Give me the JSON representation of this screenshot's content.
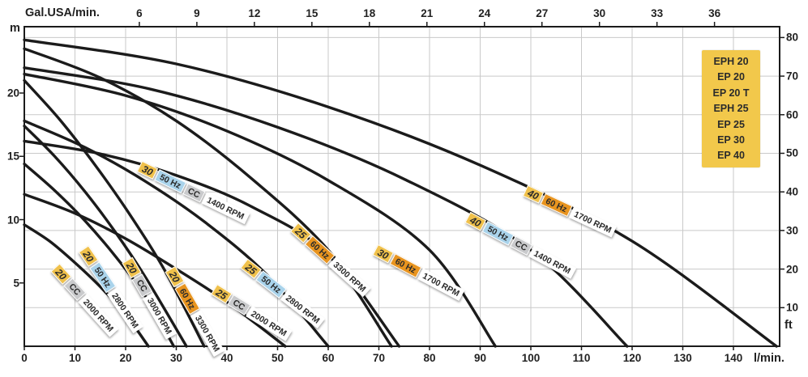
{
  "chart_data": {
    "type": "line",
    "title": "",
    "axes": {
      "top": {
        "label": "Gal.USA/min.",
        "ticks": [
          6,
          9,
          12,
          15,
          18,
          21,
          24,
          27,
          30,
          33,
          36
        ]
      },
      "bottom": {
        "label": "l/min.",
        "ticks": [
          0,
          10,
          20,
          30,
          40,
          50,
          60,
          70,
          80,
          90,
          100,
          110,
          120,
          130,
          140
        ]
      },
      "left": {
        "label": "m",
        "ticks": [
          5,
          10,
          15,
          20
        ]
      },
      "right": {
        "label": "ft",
        "ticks": [
          10,
          20,
          30,
          40,
          50,
          60,
          70,
          80
        ]
      }
    },
    "x_range_lmin": [
      0,
      149
    ],
    "y_range_m": [
      0,
      25.2
    ],
    "grid": {
      "vertical_every_lmin": 10,
      "horizontal_every_ft": 10,
      "gal_per_lmin": 0.2642,
      "ft_per_m": 3.2808
    },
    "series": [
      {
        "model": "40",
        "freq": "60 Hz",
        "cc": false,
        "rpm": "1700 RPM",
        "label": {
          "q": 98.9,
          "h": 12.8,
          "angle": 25
        },
        "points": [
          [
            0,
            24.2
          ],
          [
            30,
            22.3
          ],
          [
            60,
            18.9
          ],
          [
            90,
            14.3
          ],
          [
            120,
            8.3
          ],
          [
            148.5,
            0
          ]
        ]
      },
      {
        "model": "40",
        "freq": "50 Hz",
        "cc": true,
        "rpm": "1400 RPM",
        "label": {
          "q": 87.5,
          "h": 10.7,
          "angle": 28
        },
        "points": [
          [
            0,
            22.0
          ],
          [
            25,
            20.3
          ],
          [
            50,
            17.3
          ],
          [
            75,
            13.2
          ],
          [
            100,
            7.6
          ],
          [
            119,
            0
          ]
        ]
      },
      {
        "model": "30",
        "freq": "60 Hz",
        "cc": false,
        "rpm": "1700 RPM",
        "label": {
          "q": 69.3,
          "h": 8.1,
          "angle": 28
        },
        "points": [
          [
            0,
            21.5
          ],
          [
            20,
            19.8
          ],
          [
            40,
            17.0
          ],
          [
            60,
            13.1
          ],
          [
            80,
            7.6
          ],
          [
            93,
            0
          ]
        ]
      },
      {
        "model": "30",
        "freq": "50 Hz",
        "cc": true,
        "rpm": "1400 RPM",
        "label": {
          "q": 22.7,
          "h": 14.7,
          "angle": 26
        },
        "points": [
          [
            0,
            16.2
          ],
          [
            15,
            15.2
          ],
          [
            30,
            13.5
          ],
          [
            45,
            11.0
          ],
          [
            60,
            7.2
          ],
          [
            72.5,
            0
          ]
        ]
      },
      {
        "model": "25",
        "freq": "60 Hz",
        "cc": false,
        "rpm": "3300 RPM",
        "label": {
          "q": 53.3,
          "h": 9.9,
          "angle": 42
        },
        "points": [
          [
            0,
            23.5
          ],
          [
            15,
            21.2
          ],
          [
            30,
            17.8
          ],
          [
            45,
            13.2
          ],
          [
            60,
            7.6
          ],
          [
            74,
            0
          ]
        ]
      },
      {
        "model": "25",
        "freq": "50 Hz",
        "cc": false,
        "rpm": "2800 RPM",
        "label": {
          "q": 43.3,
          "h": 7.0,
          "angle": 38
        },
        "points": [
          [
            0,
            17.8
          ],
          [
            12,
            15.7
          ],
          [
            24,
            13.0
          ],
          [
            36,
            9.7
          ],
          [
            48,
            5.6
          ],
          [
            60,
            0
          ]
        ]
      },
      {
        "model": "25",
        "freq": null,
        "cc": true,
        "rpm": "2000 RPM",
        "label": {
          "q": 37.5,
          "h": 5.0,
          "angle": 32
        },
        "points": [
          [
            0,
            12.0
          ],
          [
            10,
            10.5
          ],
          [
            20,
            8.5
          ],
          [
            30,
            6.1
          ],
          [
            40,
            3.5
          ],
          [
            51.5,
            0
          ]
        ]
      },
      {
        "model": "20",
        "freq": "60 Hz",
        "cc": false,
        "rpm": "3300 RPM",
        "label": {
          "q": 28.8,
          "h": 6.6,
          "angle": 60
        },
        "points": [
          [
            0,
            21.0
          ],
          [
            7,
            17.9
          ],
          [
            14,
            14.3
          ],
          [
            21,
            10.3
          ],
          [
            28,
            5.8
          ],
          [
            35.5,
            0
          ]
        ]
      },
      {
        "model": "20",
        "freq": null,
        "cc": true,
        "rpm": "3000 RPM",
        "label": {
          "q": 20.3,
          "h": 7.3,
          "angle": 60
        },
        "points": [
          [
            0,
            17.4
          ],
          [
            6,
            15.0
          ],
          [
            12,
            12.2
          ],
          [
            18,
            9.0
          ],
          [
            24,
            5.4
          ],
          [
            32,
            0
          ]
        ]
      },
      {
        "model": "20",
        "freq": "50 Hz",
        "cc": false,
        "rpm": "2800 RPM",
        "label": {
          "q": 11.7,
          "h": 8.2,
          "angle": 56
        },
        "points": [
          [
            0,
            14.4
          ],
          [
            6,
            12.3
          ],
          [
            12,
            9.9
          ],
          [
            18,
            7.1
          ],
          [
            24,
            3.9
          ],
          [
            29.5,
            0
          ]
        ]
      },
      {
        "model": "20",
        "freq": null,
        "cc": true,
        "rpm": "2000 RPM",
        "label": {
          "q": 6.1,
          "h": 6.7,
          "angle": 48
        },
        "points": [
          [
            0,
            9.6
          ],
          [
            5,
            8.3
          ],
          [
            10,
            6.6
          ],
          [
            15,
            4.7
          ],
          [
            20,
            2.5
          ],
          [
            24.5,
            0
          ]
        ]
      }
    ]
  },
  "legend": {
    "models": [
      "EPH 20",
      "EP 20",
      "EP 20 T",
      "EPH 25",
      "EP 25",
      "EP 30",
      "EP 40"
    ]
  },
  "colors": {
    "curve": "#1b1b1b",
    "grid": "#c9c9c9",
    "axis": "#1b1b1b",
    "text": "#222222",
    "legend_bg": "#F2C84B",
    "model_badge": "#F0C14B",
    "hz50_badge": "#A9D3EB",
    "hz60_badge": "#E8941F",
    "cc_badge": "#C9CACC",
    "rpm_badge": "#FFFFFF"
  }
}
